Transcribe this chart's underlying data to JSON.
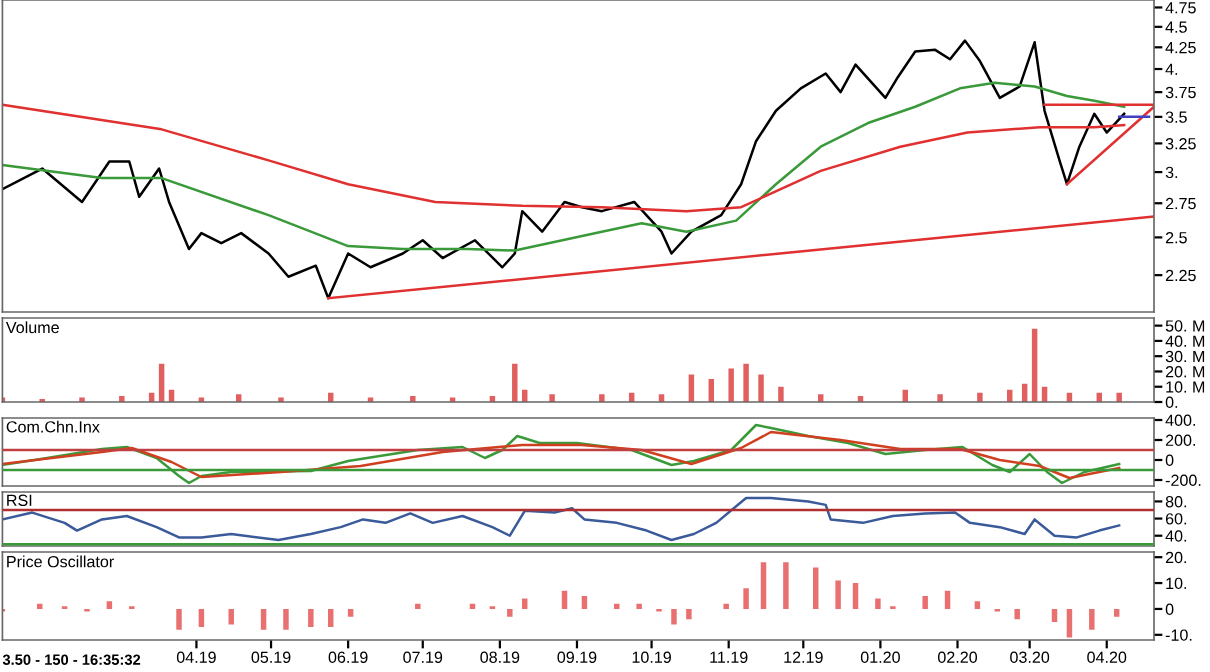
{
  "chart_data": [
    {
      "type": "line",
      "log": "y",
      "tick_labels": "y",
      "xlim": [
        "2019-01-13",
        "2020-04-20"
      ],
      "ylim": [
        2.03,
        4.85
      ],
      "yticks": [
        2.25,
        2.5,
        2.75,
        {
          "value": 3,
          "label": "3."
        },
        3.25,
        3.5,
        3.75,
        {
          "value": 4,
          "label": "4."
        },
        4.25,
        4.5,
        4.75
      ],
      "series": [
        {
          "color": "#000000",
          "x": [
            "2019-01-13",
            "2019-01-29",
            "2019-02-14",
            "2019-02-25",
            "2019-03-05",
            "2019-03-09",
            "2019-03-17",
            "2019-03-21",
            "2019-03-29",
            "2019-04-03",
            "2019-04-11",
            "2019-04-19",
            "2019-04-30",
            "2019-05-08",
            "2019-05-19",
            "2019-05-24",
            "2019-06-01",
            "2019-06-10",
            "2019-06-23",
            "2019-07-01",
            "2019-07-09",
            "2019-07-22",
            "2019-08-02",
            "2019-08-07",
            "2019-08-10",
            "2019-08-18",
            "2019-08-27",
            "2019-09-03",
            "2019-09-11",
            "2019-09-24",
            "2019-10-05",
            "2019-10-09",
            "2019-10-17",
            "2019-10-29",
            "2019-11-06",
            "2019-11-12",
            "2019-11-20",
            "2019-11-30",
            "2019-12-10",
            "2019-12-16",
            "2019-12-22",
            "2020-01-03",
            "2020-01-08",
            "2020-01-15",
            "2020-01-23",
            "2020-01-29",
            "2020-02-04",
            "2020-02-10",
            "2020-02-18",
            "2020-02-26",
            "2020-03-03",
            "2020-03-07",
            "2020-03-13",
            "2020-03-16",
            "2020-03-21",
            "2020-03-27",
            "2020-04-01",
            "2020-04-08"
          ],
          "values": [
            2.86,
            3.03,
            2.76,
            3.09,
            3.09,
            2.8,
            3.03,
            2.76,
            2.42,
            2.53,
            2.46,
            2.53,
            2.39,
            2.24,
            2.31,
            2.11,
            2.39,
            2.3,
            2.39,
            2.48,
            2.36,
            2.48,
            2.3,
            2.39,
            2.69,
            2.54,
            2.76,
            2.72,
            2.69,
            2.76,
            2.54,
            2.39,
            2.54,
            2.66,
            2.9,
            3.27,
            3.56,
            3.79,
            3.95,
            3.75,
            4.05,
            3.69,
            3.91,
            4.2,
            4.22,
            4.11,
            4.33,
            4.09,
            3.69,
            3.81,
            4.31,
            3.56,
            3.1,
            2.9,
            3.22,
            3.53,
            3.35,
            3.53
          ]
        },
        {
          "color": "#3a9a3a",
          "x": [
            "2019-01-13",
            "2019-02-22",
            "2019-03-18",
            "2019-04-30",
            "2019-06-01",
            "2019-06-23",
            "2019-07-19",
            "2019-08-07",
            "2019-09-11",
            "2019-09-27",
            "2019-10-15",
            "2019-11-04",
            "2019-11-20",
            "2019-12-08",
            "2019-12-27",
            "2020-01-15",
            "2020-02-02",
            "2020-02-16",
            "2020-03-03",
            "2020-03-16",
            "2020-03-27",
            "2020-04-08"
          ],
          "values": [
            3.06,
            2.95,
            2.95,
            2.66,
            2.44,
            2.42,
            2.42,
            2.41,
            2.54,
            2.6,
            2.54,
            2.62,
            2.9,
            3.22,
            3.44,
            3.6,
            3.79,
            3.85,
            3.81,
            3.71,
            3.66,
            3.6
          ]
        },
        {
          "color": "#e03030",
          "x": [
            "2019-01-13",
            "2019-03-18",
            "2019-04-30",
            "2019-06-01",
            "2019-07-06",
            "2019-08-10",
            "2019-09-11",
            "2019-10-15",
            "2019-11-06",
            "2019-12-08",
            "2020-01-09",
            "2020-02-05",
            "2020-03-05",
            "2020-03-27",
            "2020-04-08"
          ],
          "values": [
            3.62,
            3.38,
            3.1,
            2.9,
            2.76,
            2.73,
            2.72,
            2.69,
            2.72,
            3.01,
            3.22,
            3.35,
            3.4,
            3.4,
            3.42
          ]
        },
        {
          "color": "#e03030",
          "x": [
            "2019-05-24",
            "2020-04-20"
          ],
          "values": [
            2.11,
            2.65
          ]
        },
        {
          "color": "#e03030",
          "x": [
            "2020-03-07",
            "2020-04-20"
          ],
          "values": [
            3.62,
            3.62
          ]
        },
        {
          "color": "#e03030",
          "x": [
            "2020-03-16",
            "2020-04-20"
          ],
          "values": [
            2.9,
            3.6
          ]
        },
        {
          "color": "#4040c0",
          "x": [
            "2020-04-06",
            "2020-04-18"
          ],
          "values": [
            3.5,
            3.5
          ]
        }
      ]
    },
    {
      "type": "bar",
      "title": "Volume",
      "tick_labels": "y",
      "xlim": [
        "2019-01-13",
        "2020-04-20"
      ],
      "ylim": [
        0,
        55
      ],
      "yticks": [
        {
          "value": 0,
          "label": "0."
        },
        {
          "value": 10,
          "label": "10. M"
        },
        {
          "value": 20,
          "label": "20. M"
        },
        {
          "value": 30,
          "label": "30. M"
        },
        {
          "value": 40,
          "label": "40. M"
        },
        {
          "value": 50,
          "label": "50. M"
        }
      ],
      "series": [
        {
          "color": "#e06060",
          "x": [
            "2019-01-13",
            "2019-01-29",
            "2019-02-14",
            "2019-03-02",
            "2019-03-14",
            "2019-03-18",
            "2019-03-22",
            "2019-04-03",
            "2019-04-18",
            "2019-05-05",
            "2019-05-25",
            "2019-06-10",
            "2019-06-27",
            "2019-07-13",
            "2019-07-29",
            "2019-08-07",
            "2019-08-11",
            "2019-08-22",
            "2019-09-11",
            "2019-09-23",
            "2019-10-05",
            "2019-10-17",
            "2019-10-25",
            "2019-11-02",
            "2019-11-08",
            "2019-11-14",
            "2019-11-22",
            "2019-12-08",
            "2019-12-24",
            "2020-01-11",
            "2020-01-25",
            "2020-02-10",
            "2020-02-22",
            "2020-02-28",
            "2020-03-03",
            "2020-03-07",
            "2020-03-17",
            "2020-03-29",
            "2020-04-06"
          ],
          "values": [
            3,
            2,
            3,
            4,
            6,
            25,
            8,
            3,
            5,
            3,
            6,
            3,
            4,
            3,
            4,
            25,
            8,
            5,
            5,
            6,
            5,
            18,
            15,
            22,
            25,
            18,
            10,
            5,
            4,
            8,
            5,
            6,
            8,
            12,
            48,
            10,
            6,
            6,
            6
          ]
        }
      ]
    },
    {
      "type": "line",
      "title": "Com.Chn.Inx",
      "tick_labels": "y",
      "xlim": [
        "2019-01-13",
        "2020-04-20"
      ],
      "ylim": [
        -260,
        420
      ],
      "yticks": [
        {
          "value": -200,
          "label": "-200."
        },
        0,
        {
          "value": 200,
          "label": "200."
        },
        {
          "value": 400,
          "label": "400."
        }
      ],
      "ref_lines": [
        {
          "axis": "y",
          "value": 100,
          "color": "#c04040"
        },
        {
          "axis": "y",
          "value": -100,
          "color": "#3a9a3a"
        }
      ],
      "series": [
        {
          "color": "#3a9a3a",
          "x": [
            "2019-01-13",
            "2019-01-31",
            "2019-02-22",
            "2019-03-04",
            "2019-03-16",
            "2019-03-25",
            "2019-03-29",
            "2019-04-03",
            "2019-04-15",
            "2019-05-17",
            "2019-06-01",
            "2019-06-29",
            "2019-07-17",
            "2019-07-26",
            "2019-08-02",
            "2019-08-08",
            "2019-08-17",
            "2019-09-01",
            "2019-09-23",
            "2019-10-09",
            "2019-10-18",
            "2019-11-02",
            "2019-11-12",
            "2019-11-18",
            "2019-12-03",
            "2019-12-19",
            "2020-01-03",
            "2020-01-19",
            "2020-02-03",
            "2020-02-15",
            "2020-02-22",
            "2020-03-01",
            "2020-03-08",
            "2020-03-14",
            "2020-03-23",
            "2020-04-06"
          ],
          "values": [
            -50,
            20,
            110,
            130,
            20,
            -160,
            -230,
            -160,
            -120,
            -110,
            -10,
            100,
            130,
            20,
            100,
            240,
            170,
            170,
            100,
            -50,
            -10,
            100,
            350,
            320,
            240,
            170,
            60,
            100,
            130,
            -50,
            -120,
            60,
            -120,
            -230,
            -120,
            -40
          ]
        },
        {
          "color": "#d04020",
          "x": [
            "2019-01-13",
            "2019-02-22",
            "2019-03-06",
            "2019-03-22",
            "2019-04-03",
            "2019-05-05",
            "2019-06-06",
            "2019-07-09",
            "2019-08-10",
            "2019-09-03",
            "2019-09-27",
            "2019-10-17",
            "2019-11-06",
            "2019-11-18",
            "2019-12-16",
            "2020-01-09",
            "2020-02-02",
            "2020-02-18",
            "2020-03-05",
            "2020-03-17",
            "2020-04-06"
          ],
          "values": [
            -40,
            80,
            120,
            -20,
            -170,
            -120,
            -60,
            80,
            150,
            150,
            100,
            -40,
            120,
            280,
            200,
            110,
            110,
            0,
            -60,
            -180,
            -80
          ]
        }
      ]
    },
    {
      "type": "line",
      "title": "RSI",
      "tick_labels": "y",
      "xlim": [
        "2019-01-13",
        "2020-04-20"
      ],
      "ylim": [
        28,
        91
      ],
      "yticks": [
        {
          "value": 40,
          "label": "40."
        },
        {
          "value": 60,
          "label": "60."
        },
        {
          "value": 80,
          "label": "80."
        }
      ],
      "ref_lines": [
        {
          "axis": "y",
          "value": 70,
          "color": "#b03030"
        },
        {
          "axis": "y",
          "value": 30,
          "color": "#3a9a3a"
        }
      ],
      "series": [
        {
          "color": "#3a5a9a",
          "x": [
            "2019-01-13",
            "2019-01-25",
            "2019-02-07",
            "2019-02-12",
            "2019-02-22",
            "2019-03-04",
            "2019-03-16",
            "2019-03-25",
            "2019-04-03",
            "2019-04-15",
            "2019-05-04",
            "2019-05-17",
            "2019-05-29",
            "2019-06-07",
            "2019-06-16",
            "2019-06-26",
            "2019-07-05",
            "2019-07-17",
            "2019-07-29",
            "2019-08-05",
            "2019-08-11",
            "2019-08-23",
            "2019-08-30",
            "2019-09-04",
            "2019-09-17",
            "2019-09-29",
            "2019-10-09",
            "2019-10-18",
            "2019-10-27",
            "2019-11-08",
            "2019-11-18",
            "2019-12-03",
            "2019-12-10",
            "2019-12-12",
            "2019-12-25",
            "2020-01-06",
            "2020-01-19",
            "2020-01-31",
            "2020-02-06",
            "2020-02-18",
            "2020-02-28",
            "2020-03-03",
            "2020-03-11",
            "2020-03-20",
            "2020-03-29",
            "2020-04-06"
          ],
          "values": [
            59,
            67,
            55,
            46,
            59,
            63,
            50,
            38,
            38,
            42,
            35,
            42,
            50,
            59,
            55,
            66,
            55,
            63,
            50,
            40,
            69,
            67,
            72,
            59,
            55,
            46,
            35,
            42,
            55,
            84,
            84,
            80,
            76,
            59,
            55,
            63,
            66,
            67,
            55,
            50,
            42,
            59,
            40,
            38,
            46,
            52
          ]
        }
      ]
    },
    {
      "type": "bar",
      "title": "Price Oscillator",
      "xlim": [
        "2019-01-13",
        "2020-04-20"
      ],
      "ylim": [
        -12,
        22
      ],
      "yticks": [
        {
          "value": -10,
          "label": "-10."
        },
        0,
        {
          "value": 10,
          "label": "10."
        },
        {
          "value": 20,
          "label": "20."
        }
      ],
      "xticks": [
        {
          "value": "2019-04-01",
          "label": "04.19"
        },
        {
          "value": "2019-05-01",
          "label": "05.19"
        },
        {
          "value": "2019-06-01",
          "label": "06.19"
        },
        {
          "value": "2019-07-01",
          "label": "07.19"
        },
        {
          "value": "2019-08-01",
          "label": "08.19"
        },
        {
          "value": "2019-09-01",
          "label": "09.19"
        },
        {
          "value": "2019-10-01",
          "label": "10.19"
        },
        {
          "value": "2019-11-01",
          "label": "11.19"
        },
        {
          "value": "2019-12-01",
          "label": "12.19"
        },
        {
          "value": "2020-01-01",
          "label": "01.20"
        },
        {
          "value": "2020-02-01",
          "label": "02.20"
        },
        {
          "value": "2020-03-01",
          "label": "03.20"
        },
        {
          "value": "2020-04-01",
          "label": "04.20"
        }
      ],
      "annotations": [
        "3.50 - 150 - 16:35:32"
      ],
      "series": [
        {
          "color": "#e87070",
          "x": [
            "2019-01-13",
            "2019-01-19",
            "2019-01-28",
            "2019-02-07",
            "2019-02-16",
            "2019-02-25",
            "2019-03-06",
            "2019-03-16",
            "2019-03-25",
            "2019-04-03",
            "2019-04-15",
            "2019-04-28",
            "2019-05-07",
            "2019-05-17",
            "2019-05-25",
            "2019-06-02",
            "2019-06-10",
            "2019-06-19",
            "2019-06-29",
            "2019-07-08",
            "2019-07-21",
            "2019-07-29",
            "2019-08-05",
            "2019-08-11",
            "2019-08-27",
            "2019-09-04",
            "2019-09-17",
            "2019-09-26",
            "2019-10-04",
            "2019-10-10",
            "2019-10-16",
            "2019-10-21",
            "2019-10-31",
            "2019-11-08",
            "2019-11-15",
            "2019-11-24",
            "2019-12-06",
            "2019-12-15",
            "2019-12-22",
            "2019-12-31",
            "2020-01-06",
            "2020-01-19",
            "2020-01-28",
            "2020-02-09",
            "2020-02-17",
            "2020-02-25",
            "2020-03-03",
            "2020-03-11",
            "2020-03-17",
            "2020-03-26",
            "2020-04-05"
          ],
          "values": [
            -1,
            0,
            2,
            1,
            -1,
            3,
            1,
            0,
            -8,
            -7,
            -6,
            -8,
            -8,
            -7,
            -7,
            -3,
            0,
            0,
            2,
            0,
            2,
            1,
            -3,
            4,
            7,
            5,
            2,
            2,
            -1,
            -6,
            -4,
            0,
            2,
            8,
            18,
            18,
            16,
            11,
            10,
            4,
            1,
            5,
            7,
            3,
            -1,
            -4,
            0,
            -5,
            -11,
            -8,
            -3
          ]
        }
      ]
    }
  ]
}
